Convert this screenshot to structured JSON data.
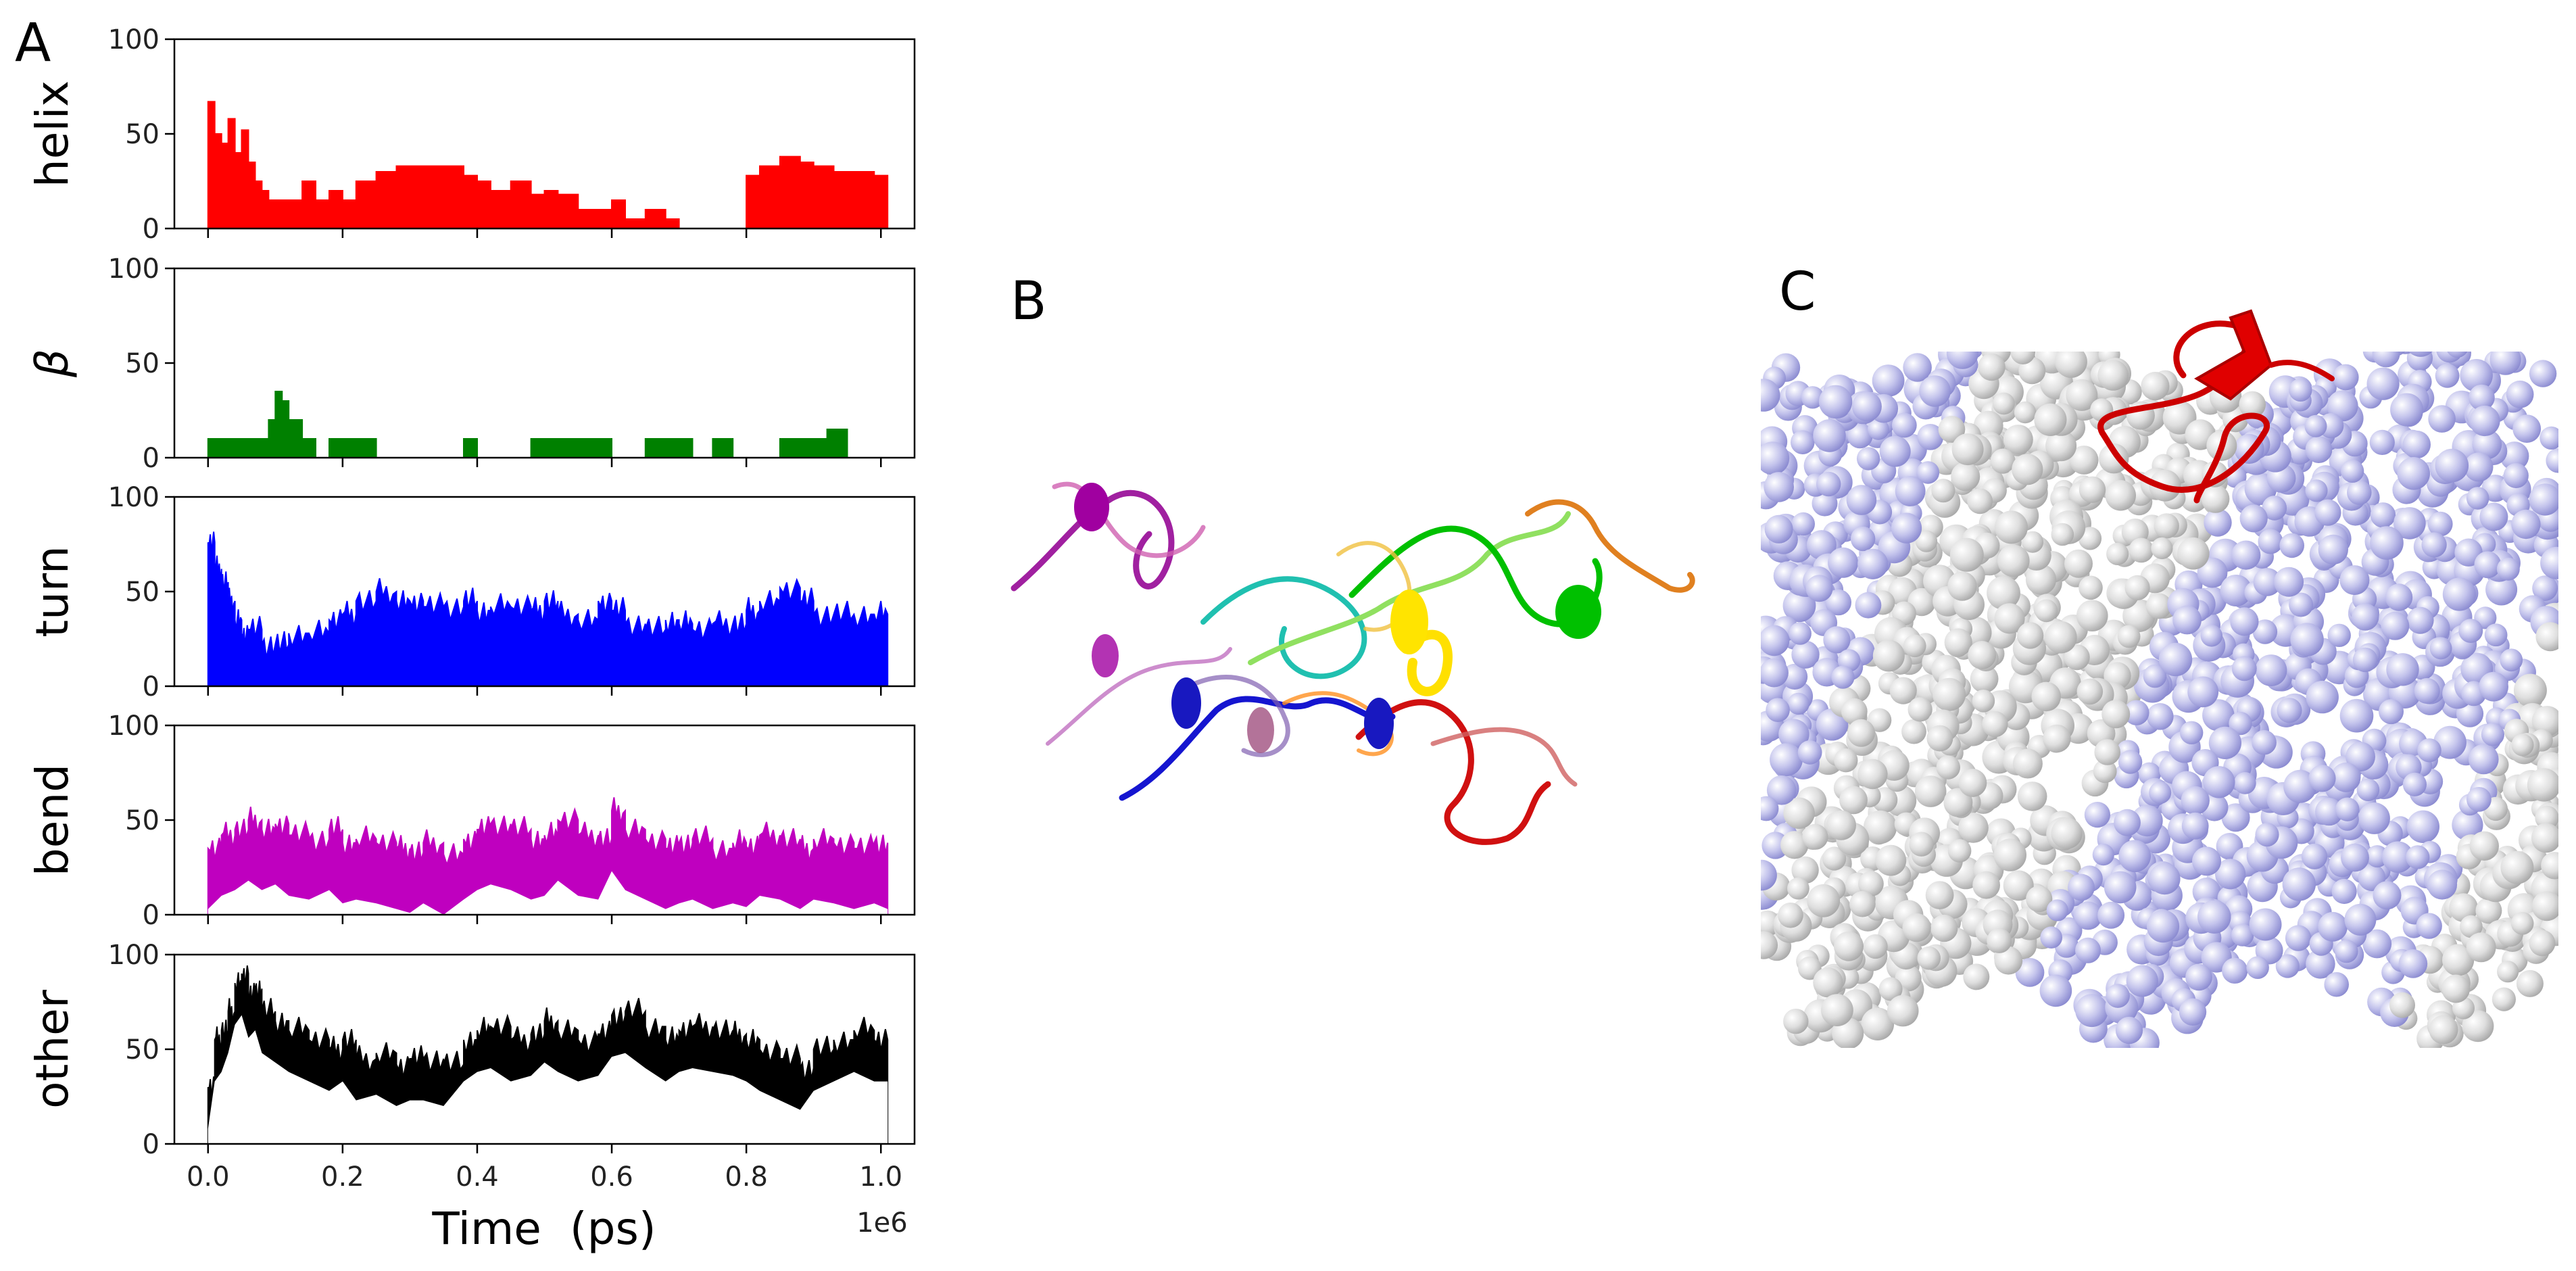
{
  "figure_labels": {
    "a": "A",
    "b": "B",
    "c": "C"
  },
  "chart_data": {
    "type": "area",
    "xlabel": "Time  (ps)",
    "x_offset_label": "1e6",
    "xlim": [
      -0.05,
      1.05
    ],
    "x_ticks": [
      0.0,
      0.2,
      0.4,
      0.6,
      0.8,
      1.0
    ],
    "x_tick_labels": [
      "0.0",
      "0.2",
      "0.4",
      "0.6",
      "0.8",
      "1.0"
    ],
    "ylim": [
      0,
      100
    ],
    "y_ticks": [
      0,
      50,
      100
    ],
    "y_tick_labels": [
      "0",
      "50",
      "100"
    ],
    "series": [
      {
        "name": "helix",
        "ylabel": "helix",
        "color": "#ff0000",
        "x": [
          0.0,
          0.01,
          0.02,
          0.03,
          0.04,
          0.05,
          0.06,
          0.07,
          0.08,
          0.09,
          0.1,
          0.12,
          0.14,
          0.16,
          0.18,
          0.2,
          0.22,
          0.25,
          0.28,
          0.3,
          0.32,
          0.35,
          0.38,
          0.4,
          0.42,
          0.45,
          0.48,
          0.5,
          0.52,
          0.55,
          0.58,
          0.6,
          0.62,
          0.65,
          0.68,
          0.7,
          0.72,
          0.75,
          0.78,
          0.8,
          0.82,
          0.85,
          0.88,
          0.9,
          0.93,
          0.96,
          0.99,
          1.01
        ],
        "values": [
          67,
          50,
          45,
          58,
          40,
          52,
          35,
          25,
          20,
          15,
          15,
          15,
          25,
          15,
          20,
          15,
          25,
          30,
          33,
          33,
          33,
          33,
          28,
          25,
          20,
          25,
          18,
          20,
          18,
          10,
          10,
          15,
          5,
          10,
          5,
          0,
          0,
          0,
          0,
          28,
          33,
          38,
          35,
          33,
          30,
          30,
          28,
          28
        ]
      },
      {
        "name": "beta",
        "ylabel": "β",
        "color": "#008000",
        "x": [
          0.0,
          0.02,
          0.04,
          0.06,
          0.08,
          0.09,
          0.1,
          0.11,
          0.12,
          0.14,
          0.16,
          0.18,
          0.2,
          0.22,
          0.25,
          0.28,
          0.3,
          0.35,
          0.38,
          0.4,
          0.45,
          0.48,
          0.5,
          0.52,
          0.55,
          0.6,
          0.65,
          0.68,
          0.7,
          0.72,
          0.75,
          0.78,
          0.8,
          0.85,
          0.88,
          0.9,
          0.92,
          0.95,
          0.98,
          1.01
        ],
        "values": [
          10,
          10,
          10,
          10,
          10,
          20,
          35,
          30,
          20,
          10,
          0,
          10,
          10,
          10,
          0,
          0,
          0,
          0,
          10,
          0,
          0,
          10,
          10,
          10,
          10,
          0,
          10,
          10,
          10,
          0,
          10,
          0,
          0,
          10,
          10,
          10,
          15,
          0,
          0,
          0
        ]
      },
      {
        "name": "turn",
        "ylabel": "turn",
        "color": "#0000ff",
        "x": [
          0.0,
          0.01,
          0.02,
          0.03,
          0.04,
          0.05,
          0.06,
          0.08,
          0.1,
          0.12,
          0.15,
          0.18,
          0.2,
          0.22,
          0.25,
          0.28,
          0.3,
          0.32,
          0.35,
          0.38,
          0.4,
          0.42,
          0.45,
          0.48,
          0.5,
          0.52,
          0.55,
          0.58,
          0.6,
          0.62,
          0.65,
          0.68,
          0.7,
          0.72,
          0.75,
          0.78,
          0.8,
          0.82,
          0.85,
          0.88,
          0.9,
          0.93,
          0.96,
          0.99,
          1.01
        ],
        "values": [
          76,
          62,
          55,
          45,
          35,
          28,
          30,
          22,
          22,
          28,
          28,
          35,
          38,
          45,
          50,
          45,
          45,
          42,
          42,
          45,
          40,
          42,
          42,
          40,
          45,
          38,
          35,
          45,
          40,
          33,
          30,
          35,
          33,
          30,
          33,
          33,
          40,
          45,
          52,
          45,
          38,
          38,
          38,
          38,
          35
        ]
      },
      {
        "name": "bend",
        "ylabel": "bend",
        "color": "#bf00bf",
        "x": [
          0.0,
          0.02,
          0.04,
          0.06,
          0.08,
          0.1,
          0.12,
          0.15,
          0.18,
          0.2,
          0.22,
          0.25,
          0.28,
          0.3,
          0.32,
          0.35,
          0.38,
          0.4,
          0.42,
          0.45,
          0.48,
          0.5,
          0.52,
          0.55,
          0.58,
          0.6,
          0.62,
          0.65,
          0.68,
          0.7,
          0.72,
          0.75,
          0.78,
          0.8,
          0.82,
          0.85,
          0.88,
          0.9,
          0.93,
          0.96,
          0.99,
          1.01
        ],
        "values": [
          35,
          42,
          45,
          50,
          45,
          48,
          42,
          40,
          45,
          38,
          40,
          38,
          35,
          33,
          38,
          32,
          40,
          45,
          48,
          45,
          40,
          42,
          50,
          42,
          40,
          55,
          45,
          40,
          35,
          38,
          40,
          35,
          38,
          36,
          42,
          40,
          35,
          40,
          38,
          35,
          38,
          35
        ]
      },
      {
        "name": "other",
        "ylabel": "other",
        "color": "#000000",
        "x": [
          0.0,
          0.01,
          0.02,
          0.03,
          0.04,
          0.05,
          0.06,
          0.07,
          0.08,
          0.1,
          0.12,
          0.15,
          0.18,
          0.2,
          0.22,
          0.25,
          0.28,
          0.3,
          0.32,
          0.35,
          0.38,
          0.4,
          0.42,
          0.45,
          0.48,
          0.5,
          0.52,
          0.55,
          0.58,
          0.6,
          0.62,
          0.65,
          0.68,
          0.7,
          0.72,
          0.75,
          0.78,
          0.8,
          0.82,
          0.85,
          0.88,
          0.9,
          0.93,
          0.96,
          0.99,
          1.01
        ],
        "values": [
          30,
          55,
          60,
          70,
          85,
          90,
          78,
          82,
          70,
          65,
          60,
          55,
          50,
          55,
          45,
          48,
          42,
          45,
          45,
          42,
          55,
          60,
          62,
          55,
          58,
          65,
          60,
          55,
          58,
          68,
          70,
          62,
          55,
          60,
          62,
          60,
          58,
          55,
          50,
          45,
          40,
          50,
          55,
          60,
          55,
          55
        ]
      }
    ]
  }
}
